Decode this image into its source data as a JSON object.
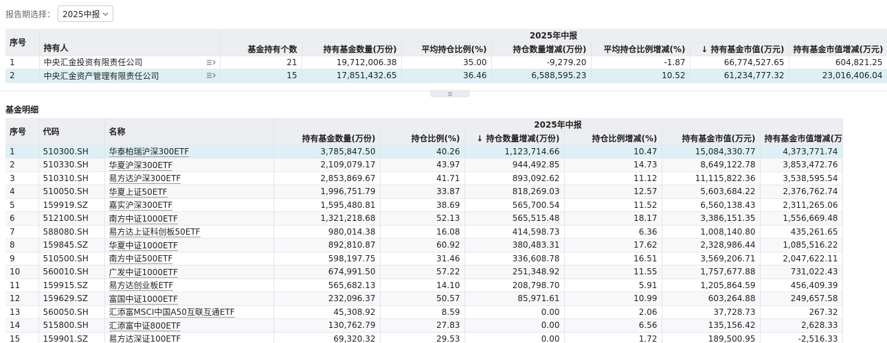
{
  "filter": {
    "label": "报告期选择：",
    "selected": "2025中报"
  },
  "holders": {
    "headers": {
      "index": "序号",
      "holder": "持有人",
      "group": "2025年中报",
      "fund_count": "基金持有个数",
      "quantity": "持有基金数量(万份)",
      "avg_ratio": "平均持仓比例(%)",
      "qty_change": "持仓数量增减(万份)",
      "avg_ratio_change": "平均持仓比例增减(%)",
      "sort_arrow": "↓",
      "market_value": "持有基金市值(万元)",
      "mv_change": "持有基金市值增减(万元)"
    },
    "rows": [
      {
        "index": "1",
        "holder": "中央汇金投资有限责任公司",
        "fund_count": "21",
        "quantity": "19,712,006.38",
        "avg_ratio": "35.00",
        "qty_change": "-9,279.20",
        "avg_ratio_change": "-1.87",
        "market_value": "66,774,527.65",
        "mv_change": "604,821.25"
      },
      {
        "index": "2",
        "holder": "中央汇金资产管理有限责任公司",
        "fund_count": "15",
        "quantity": "17,851,432.65",
        "avg_ratio": "36.46",
        "qty_change": "6,588,595.23",
        "avg_ratio_change": "10.52",
        "market_value": "61,234,777.32",
        "mv_change": "23,016,406.04"
      }
    ]
  },
  "details": {
    "title": "基金明细",
    "headers": {
      "index": "序号",
      "code": "代码",
      "name": "名称",
      "group": "2025年中报",
      "quantity": "持有基金数量(万份)",
      "ratio": "持仓比例(%)",
      "sort_arrow": "↓",
      "qty_change": "持仓数量增减(万份)",
      "ratio_change": "持仓比例增减(%)",
      "market_value": "持有基金市值(万元)",
      "mv_change": "持有基金市值增减(万元)"
    },
    "rows": [
      {
        "index": "1",
        "code": "510300.SH",
        "name": "华泰柏瑞沪深300ETF",
        "quantity": "3,785,847.50",
        "ratio": "40.26",
        "qty_change": "1,123,714.66",
        "ratio_change": "10.47",
        "market_value": "15,084,330.77",
        "mv_change": "4,373,771.74"
      },
      {
        "index": "2",
        "code": "510330.SH",
        "name": "华夏沪深300ETF",
        "quantity": "2,109,079.17",
        "ratio": "43.97",
        "qty_change": "944,492.85",
        "ratio_change": "14.73",
        "market_value": "8,649,122.78",
        "mv_change": "3,853,472.76"
      },
      {
        "index": "3",
        "code": "510310.SH",
        "name": "易方达沪深300ETF",
        "quantity": "2,853,869.67",
        "ratio": "41.71",
        "qty_change": "893,092.62",
        "ratio_change": "11.12",
        "market_value": "11,115,822.36",
        "mv_change": "3,538,595.54"
      },
      {
        "index": "4",
        "code": "510050.SH",
        "name": "华夏上证50ETF",
        "quantity": "1,996,751.79",
        "ratio": "33.87",
        "qty_change": "818,269.03",
        "ratio_change": "12.57",
        "market_value": "5,603,684.22",
        "mv_change": "2,376,762.74"
      },
      {
        "index": "5",
        "code": "159919.SZ",
        "name": "嘉实沪深300ETF",
        "quantity": "1,595,480.81",
        "ratio": "38.69",
        "qty_change": "565,700.54",
        "ratio_change": "11.52",
        "market_value": "6,560,138.43",
        "mv_change": "2,311,265.06"
      },
      {
        "index": "6",
        "code": "512100.SH",
        "name": "南方中证1000ETF",
        "quantity": "1,321,218.68",
        "ratio": "52.13",
        "qty_change": "565,515.48",
        "ratio_change": "18.17",
        "market_value": "3,386,151.35",
        "mv_change": "1,556,669.48"
      },
      {
        "index": "7",
        "code": "588080.SH",
        "name": "易方达上证科创板50ETF",
        "quantity": "980,014.38",
        "ratio": "16.08",
        "qty_change": "414,598.73",
        "ratio_change": "6.36",
        "market_value": "1,008,140.80",
        "mv_change": "435,261.65"
      },
      {
        "index": "8",
        "code": "159845.SZ",
        "name": "华夏中证1000ETF",
        "quantity": "892,810.87",
        "ratio": "60.92",
        "qty_change": "380,483.31",
        "ratio_change": "17.62",
        "market_value": "2,328,986.44",
        "mv_change": "1,085,516.22"
      },
      {
        "index": "9",
        "code": "510500.SH",
        "name": "南方中证500ETF",
        "quantity": "598,197.75",
        "ratio": "31.46",
        "qty_change": "336,608.78",
        "ratio_change": "16.51",
        "market_value": "3,569,206.71",
        "mv_change": "2,047,622.11"
      },
      {
        "index": "10",
        "code": "560010.SH",
        "name": "广发中证1000ETF",
        "quantity": "674,991.50",
        "ratio": "57.22",
        "qty_change": "251,348.92",
        "ratio_change": "11.55",
        "market_value": "1,757,677.88",
        "mv_change": "731,022.43"
      },
      {
        "index": "11",
        "code": "159915.SZ",
        "name": "易方达创业板ETF",
        "quantity": "565,682.13",
        "ratio": "14.10",
        "qty_change": "208,798.70",
        "ratio_change": "5.91",
        "market_value": "1,205,864.59",
        "mv_change": "456,409.39"
      },
      {
        "index": "12",
        "code": "159629.SZ",
        "name": "富国中证1000ETF",
        "quantity": "232,096.37",
        "ratio": "50.57",
        "qty_change": "85,971.61",
        "ratio_change": "10.99",
        "market_value": "603,264.88",
        "mv_change": "249,657.58"
      },
      {
        "index": "13",
        "code": "560050.SH",
        "name": "汇添富MSCI中国A50互联互通ETF",
        "quantity": "45,308.92",
        "ratio": "8.59",
        "qty_change": "0.00",
        "ratio_change": "2.06",
        "market_value": "37,728.73",
        "mv_change": "267.32"
      },
      {
        "index": "14",
        "code": "515800.SH",
        "name": "汇添富中证800ETF",
        "quantity": "130,762.79",
        "ratio": "27.83",
        "qty_change": "0.00",
        "ratio_change": "6.56",
        "market_value": "135,156.42",
        "mv_change": "2,628.33"
      },
      {
        "index": "15",
        "code": "159901.SZ",
        "name": "易方达深证100ETF",
        "quantity": "69,320.32",
        "ratio": "29.53",
        "qty_change": "0.00",
        "ratio_change": "1.72",
        "market_value": "189,500.95",
        "mv_change": "-2,516.33"
      }
    ]
  },
  "colors": {
    "header_bg": "#eceef1",
    "selected_row": "#dcf0f5",
    "alt_row": "#f7f8fa",
    "grid": "#e2e4e8"
  },
  "icons": {
    "dropdown": "chevron-down-icon",
    "row_menu": "list-arrow-icon",
    "collapse": "double-chevron-down-icon"
  }
}
